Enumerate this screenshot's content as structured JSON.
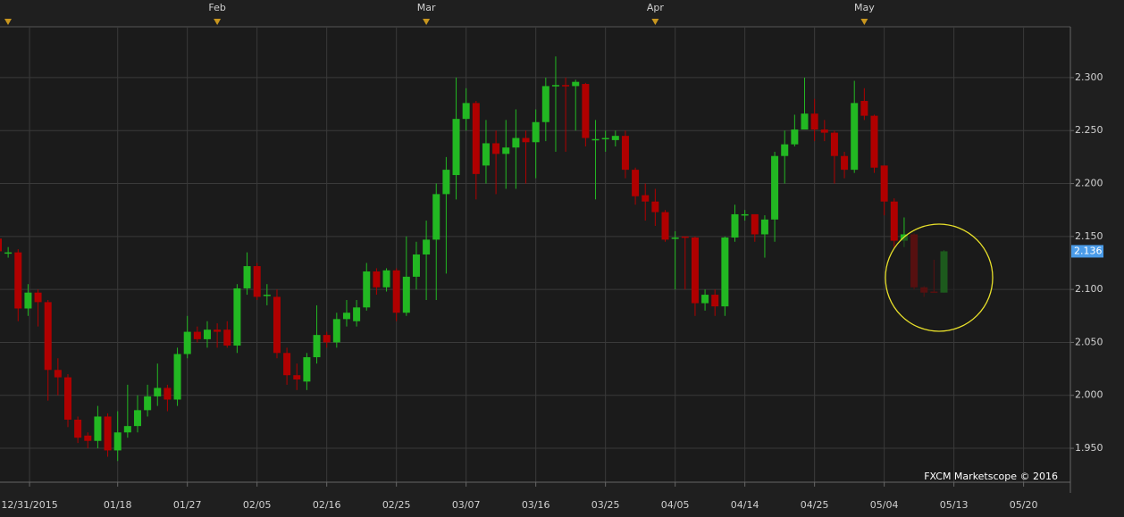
{
  "chart_data": {
    "type": "candlestick",
    "up_color": "#22b822",
    "down_color": "#b00000",
    "open": [
      2.148,
      2.135,
      2.135,
      2.082,
      2.097,
      2.088,
      2.024,
      2.017,
      1.977,
      1.962,
      1.957,
      1.98,
      1.948,
      1.965,
      1.971,
      1.986,
      1.999,
      2.007,
      1.996,
      2.039,
      2.06,
      2.053,
      2.062,
      2.062,
      2.047,
      2.101,
      2.122,
      2.095,
      2.093,
      2.04,
      2.019,
      2.013,
      2.036,
      2.057,
      2.05,
      2.072,
      2.07,
      2.083,
      2.117,
      2.102,
      2.118,
      2.078,
      2.112,
      2.133,
      2.147,
      2.19,
      2.208,
      2.261,
      2.276,
      2.217,
      2.238,
      2.228,
      2.234,
      2.243,
      2.239,
      2.258,
      2.292,
      2.293,
      2.292,
      2.294,
      2.242,
      2.243,
      2.241,
      2.245,
      2.213,
      2.189,
      2.183,
      2.173,
      2.149,
      2.15,
      2.149,
      2.087,
      2.095,
      2.084,
      2.149,
      2.171,
      2.171,
      2.152,
      2.166,
      2.226,
      2.237,
      2.251,
      2.266,
      2.251,
      2.248,
      2.226,
      2.213,
      2.278,
      2.264,
      2.217,
      2.183,
      2.146,
      2.152,
      2.102,
      2.098,
      2.097
    ],
    "high": [
      2.15,
      2.14,
      2.138,
      2.105,
      2.1,
      2.09,
      2.035,
      2.02,
      1.98,
      1.965,
      1.99,
      1.983,
      1.985,
      2.01,
      2.0,
      2.01,
      2.03,
      2.01,
      2.045,
      2.075,
      2.065,
      2.07,
      2.068,
      2.07,
      2.105,
      2.135,
      2.125,
      2.105,
      2.1,
      2.045,
      2.03,
      2.04,
      2.085,
      2.06,
      2.078,
      2.09,
      2.09,
      2.125,
      2.12,
      2.12,
      2.12,
      2.15,
      2.145,
      2.165,
      2.2,
      2.225,
      2.3,
      2.29,
      2.278,
      2.26,
      2.25,
      2.26,
      2.27,
      2.25,
      2.27,
      2.3,
      2.32,
      2.3,
      2.298,
      2.295,
      2.26,
      2.25,
      2.25,
      2.25,
      2.215,
      2.2,
      2.195,
      2.175,
      2.155,
      2.15,
      2.15,
      2.1,
      2.1,
      2.15,
      2.18,
      2.175,
      2.17,
      2.17,
      2.23,
      2.25,
      2.265,
      2.3,
      2.28,
      2.26,
      2.25,
      2.23,
      2.297,
      2.29,
      2.265,
      2.217,
      2.186,
      2.168,
      2.153,
      2.103,
      2.128,
      2.137
    ],
    "low": [
      2.13,
      2.13,
      2.07,
      2.075,
      2.065,
      1.995,
      2.0,
      1.97,
      1.955,
      1.95,
      1.95,
      1.942,
      1.938,
      1.96,
      1.965,
      1.98,
      1.99,
      1.985,
      1.99,
      2.035,
      2.05,
      2.045,
      2.045,
      2.045,
      2.04,
      2.095,
      2.09,
      2.085,
      2.035,
      2.01,
      2.005,
      2.005,
      2.03,
      2.045,
      2.045,
      2.065,
      2.065,
      2.08,
      2.095,
      2.098,
      2.07,
      2.075,
      2.1,
      2.09,
      2.09,
      2.115,
      2.185,
      2.25,
      2.185,
      2.2,
      2.19,
      2.195,
      2.195,
      2.2,
      2.205,
      2.24,
      2.23,
      2.23,
      2.25,
      2.235,
      2.185,
      2.23,
      2.235,
      2.205,
      2.18,
      2.165,
      2.16,
      2.145,
      2.1,
      2.1,
      2.075,
      2.08,
      2.075,
      2.075,
      2.145,
      2.165,
      2.145,
      2.13,
      2.145,
      2.2,
      2.235,
      2.255,
      2.24,
      2.24,
      2.2,
      2.205,
      2.21,
      2.26,
      2.21,
      2.17,
      2.14,
      2.14,
      2.1,
      2.093,
      2.097,
      2.097
    ],
    "close": [
      2.136,
      2.135,
      2.082,
      2.097,
      2.088,
      2.024,
      2.017,
      1.977,
      1.96,
      1.957,
      1.98,
      1.948,
      1.965,
      1.971,
      1.986,
      1.999,
      2.007,
      1.996,
      2.039,
      2.06,
      2.053,
      2.062,
      2.06,
      2.047,
      2.101,
      2.122,
      2.093,
      2.095,
      2.04,
      2.019,
      2.015,
      2.036,
      2.057,
      2.05,
      2.072,
      2.078,
      2.083,
      2.117,
      2.102,
      2.118,
      2.078,
      2.112,
      2.133,
      2.147,
      2.19,
      2.213,
      2.261,
      2.276,
      2.209,
      2.238,
      2.228,
      2.234,
      2.243,
      2.239,
      2.258,
      2.292,
      2.293,
      2.292,
      2.296,
      2.243,
      2.242,
      2.243,
      2.245,
      2.213,
      2.188,
      2.183,
      2.173,
      2.147,
      2.149,
      2.149,
      2.087,
      2.095,
      2.084,
      2.149,
      2.171,
      2.171,
      2.152,
      2.166,
      2.226,
      2.237,
      2.251,
      2.266,
      2.251,
      2.248,
      2.226,
      2.213,
      2.276,
      2.264,
      2.215,
      2.183,
      2.146,
      2.152,
      2.102,
      2.097,
      2.097,
      2.136
    ],
    "xlim": [
      0.18,
      107.7
    ],
    "ylim": [
      1.918,
      2.348
    ],
    "yticks": [
      {
        "value": 1.95,
        "label": "1.950"
      },
      {
        "value": 2.0,
        "label": "2.000"
      },
      {
        "value": 2.05,
        "label": "2.050"
      },
      {
        "value": 2.1,
        "label": "2.100"
      },
      {
        "value": 2.15,
        "label": "2.150"
      },
      {
        "value": 2.2,
        "label": "2.200"
      },
      {
        "value": 2.25,
        "label": "2.250"
      },
      {
        "value": 2.3,
        "label": "2.300"
      }
    ],
    "xticks": [
      {
        "value": 3.15,
        "label": "12/31/2015"
      },
      {
        "value": 12,
        "label": "01/18"
      },
      {
        "value": 19,
        "label": "01/27"
      },
      {
        "value": 26,
        "label": "02/05"
      },
      {
        "value": 33,
        "label": "02/16"
      },
      {
        "value": 40,
        "label": "02/25"
      },
      {
        "value": 47,
        "label": "03/07"
      },
      {
        "value": 54,
        "label": "03/16"
      },
      {
        "value": 61,
        "label": "03/25"
      },
      {
        "value": 68,
        "label": "04/05"
      },
      {
        "value": 75,
        "label": "04/14"
      },
      {
        "value": 82,
        "label": "04/25"
      },
      {
        "value": 89,
        "label": "05/04"
      },
      {
        "value": 96,
        "label": "05/13"
      },
      {
        "value": 103,
        "label": "05/20"
      }
    ],
    "month_ticks": [
      {
        "value": 22,
        "label": "Feb"
      },
      {
        "value": 43,
        "label": "Mar"
      },
      {
        "value": 66,
        "label": "Apr"
      },
      {
        "value": 87,
        "label": "May"
      }
    ],
    "last_price": 2.136,
    "watermark": "FXCM Marketscope © 2016",
    "grid": true
  }
}
